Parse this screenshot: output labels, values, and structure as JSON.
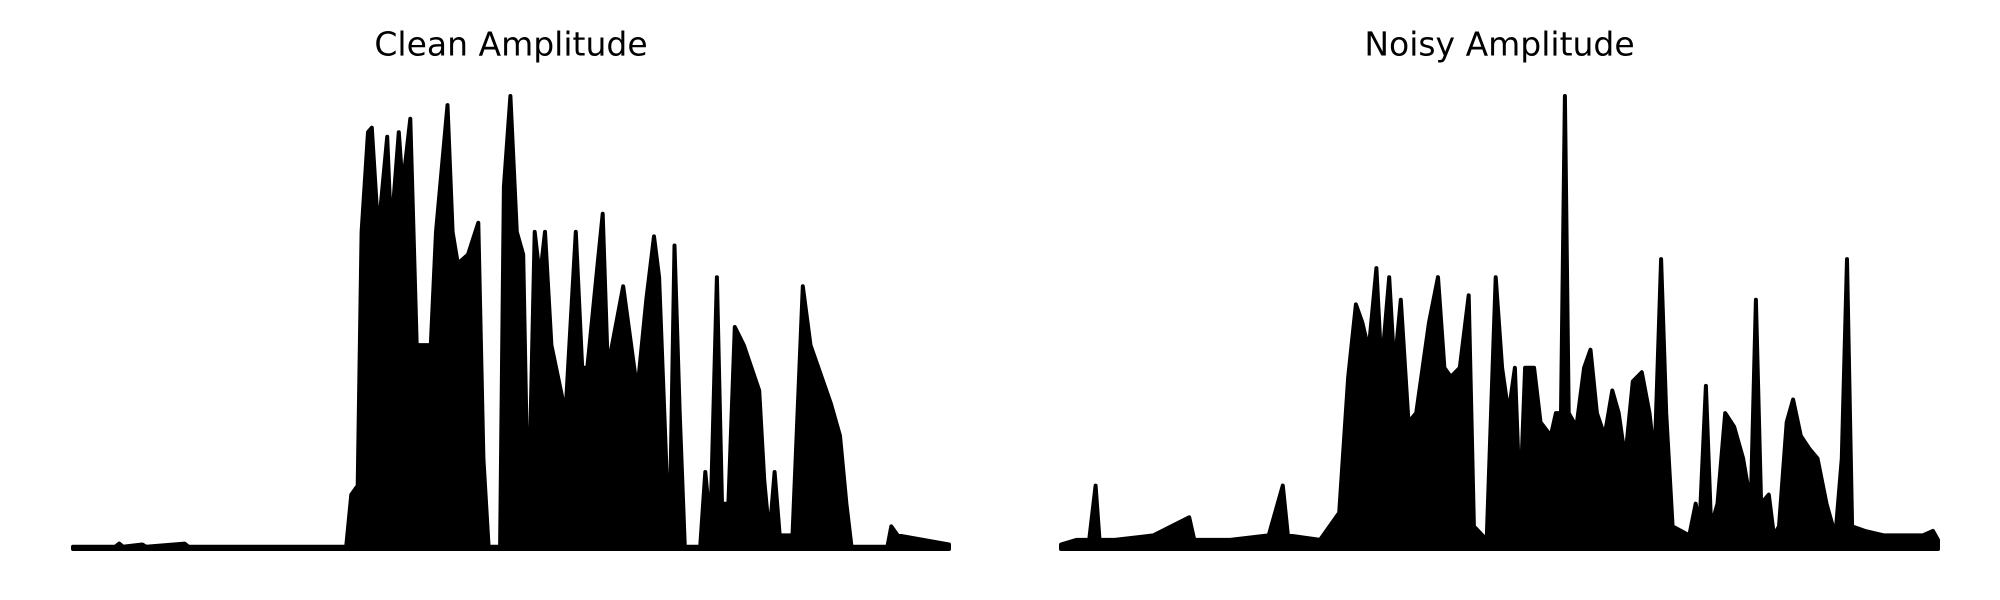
{
  "chart_data": [
    {
      "type": "line",
      "title": "Clean Amplitude",
      "color": "#000000",
      "xlim": [
        0,
        683
      ],
      "ylim": [
        0,
        1
      ],
      "x": [
        0,
        33,
        36,
        39,
        54,
        57,
        87,
        90,
        213,
        217,
        222,
        225,
        230,
        233,
        238,
        245,
        248,
        254,
        257,
        263,
        268,
        279,
        283,
        292,
        296,
        300,
        308,
        316,
        320,
        324,
        333,
        336,
        341,
        346,
        351,
        355,
        360,
        364,
        368,
        373,
        384,
        392,
        397,
        401,
        408,
        413,
        417,
        429,
        440,
        447,
        453,
        457,
        461,
        465,
        469,
        473,
        477,
        489,
        493,
        497,
        502,
        506,
        511,
        516,
        523,
        535,
        539,
        543,
        547,
        551,
        561,
        569,
        575,
        591,
        598,
        603,
        607,
        635,
        638,
        643,
        683
      ],
      "values": [
        0.005,
        0.005,
        0.012,
        0.005,
        0.01,
        0.005,
        0.012,
        0.005,
        0.005,
        0.12,
        0.14,
        0.7,
        0.92,
        0.93,
        0.7,
        0.91,
        0.7,
        0.92,
        0.8,
        0.95,
        0.45,
        0.45,
        0.7,
        0.98,
        0.7,
        0.63,
        0.65,
        0.72,
        0.2,
        0.005,
        0.005,
        0.8,
        1.0,
        0.7,
        0.65,
        0.05,
        0.7,
        0.6,
        0.7,
        0.45,
        0.3,
        0.7,
        0.4,
        0.4,
        0.6,
        0.74,
        0.4,
        0.58,
        0.35,
        0.55,
        0.69,
        0.6,
        0.3,
        0.005,
        0.67,
        0.3,
        0.005,
        0.005,
        0.17,
        0.05,
        0.6,
        0.1,
        0.1,
        0.49,
        0.45,
        0.35,
        0.15,
        0.03,
        0.17,
        0.03,
        0.03,
        0.58,
        0.45,
        0.32,
        0.25,
        0.1,
        0.005,
        0.005,
        0.05,
        0.03,
        0.01
      ]
    },
    {
      "type": "line",
      "title": "Noisy Amplitude",
      "color": "#000000",
      "xlim": [
        0,
        684
      ],
      "ylim": [
        0,
        1
      ],
      "x": [
        0,
        12,
        22,
        27,
        30,
        42,
        72,
        100,
        104,
        132,
        162,
        173,
        177,
        202,
        217,
        224,
        230,
        235,
        240,
        246,
        250,
        256,
        260,
        265,
        271,
        277,
        282,
        287,
        294,
        299,
        304,
        311,
        318,
        322,
        332,
        339,
        344,
        349,
        354,
        358,
        362,
        369,
        374,
        382,
        386,
        390,
        393,
        396,
        402,
        408,
        413,
        418,
        424,
        430,
        435,
        440,
        446,
        453,
        459,
        463,
        468,
        472,
        477,
        490,
        495,
        498,
        503,
        507,
        512,
        518,
        525,
        532,
        538,
        542,
        546,
        552,
        556,
        560,
        566,
        571,
        577,
        584,
        590,
        597,
        604,
        609,
        613,
        617,
        627,
        642,
        662,
        672,
        680,
        684
      ],
      "values": [
        0.01,
        0.02,
        0.02,
        0.14,
        0.02,
        0.02,
        0.03,
        0.07,
        0.02,
        0.02,
        0.03,
        0.14,
        0.03,
        0.02,
        0.08,
        0.38,
        0.54,
        0.5,
        0.44,
        0.62,
        0.4,
        0.6,
        0.4,
        0.55,
        0.28,
        0.3,
        0.4,
        0.5,
        0.6,
        0.4,
        0.38,
        0.4,
        0.56,
        0.05,
        0.02,
        0.6,
        0.4,
        0.3,
        0.4,
        0.1,
        0.4,
        0.4,
        0.28,
        0.25,
        0.3,
        0.3,
        1.0,
        0.3,
        0.27,
        0.4,
        0.44,
        0.3,
        0.25,
        0.35,
        0.3,
        0.2,
        0.37,
        0.39,
        0.3,
        0.2,
        0.64,
        0.3,
        0.05,
        0.03,
        0.1,
        0.05,
        0.36,
        0.05,
        0.1,
        0.3,
        0.27,
        0.2,
        0.1,
        0.55,
        0.1,
        0.12,
        0.03,
        0.05,
        0.28,
        0.33,
        0.25,
        0.22,
        0.2,
        0.1,
        0.03,
        0.2,
        0.64,
        0.05,
        0.04,
        0.03,
        0.03,
        0.03,
        0.04,
        0.02
      ]
    }
  ]
}
